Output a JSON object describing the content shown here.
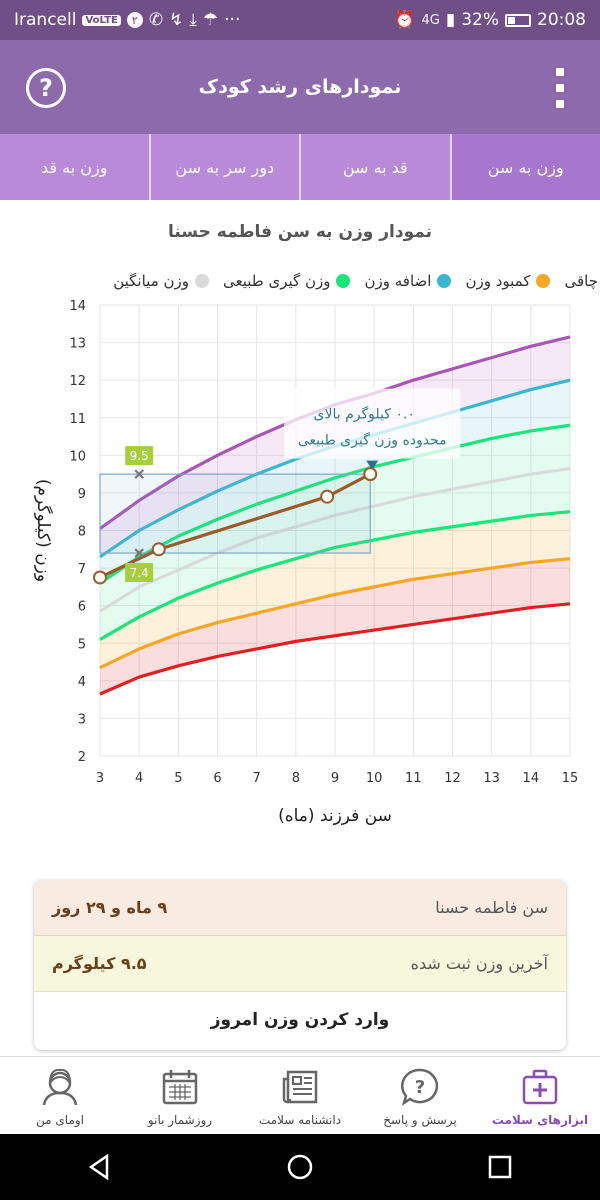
{
  "status_bar": {
    "carrier": "Irancell",
    "volte": "VoLTE",
    "badge": "۲",
    "battery": "32%",
    "time": "20:08",
    "network": "4G"
  },
  "app_bar": {
    "title": "نمودارهای رشد کودک",
    "help_icon": "question-circle-icon",
    "menu_icon": "overflow-menu-icon"
  },
  "tabs": [
    {
      "label": "وزن به سن",
      "active": true
    },
    {
      "label": "قد به سن",
      "active": false
    },
    {
      "label": "دور سر به سن",
      "active": false
    },
    {
      "label": "وزن به قد",
      "active": false
    }
  ],
  "chart_title": "نمودار وزن به سن فاطمه حسنا",
  "legend": [
    {
      "label": "چاقی",
      "color": "#a855b5"
    },
    {
      "label": "کمبود وزن",
      "color": "#f5a623"
    },
    {
      "label": "اضافه وزن",
      "color": "#3bb6d1"
    },
    {
      "label": "وزن گیری طبیعی",
      "color": "#19e67a"
    },
    {
      "label": "وزن میانگین",
      "color": "#d9d9d9"
    }
  ],
  "chart_data": {
    "type": "line",
    "title": "نمودار وزن به سن فاطمه حسنا",
    "xlabel": "سن فرزند (ماه)",
    "ylabel": "وزن (کیلوگرم)",
    "xlim": [
      3,
      15
    ],
    "ylim": [
      2,
      14
    ],
    "x": [
      3,
      4,
      5,
      6,
      7,
      8,
      9,
      10,
      11,
      12,
      13,
      14,
      15
    ],
    "series": [
      {
        "color": "#a855b5",
        "values": [
          8.05,
          8.8,
          9.45,
          10.0,
          10.5,
          10.95,
          11.35,
          11.65,
          12.0,
          12.3,
          12.6,
          12.9,
          13.15
        ]
      },
      {
        "color": "#3bb6d1",
        "values": [
          7.3,
          8.0,
          8.55,
          9.05,
          9.5,
          9.9,
          10.25,
          10.55,
          10.85,
          11.15,
          11.45,
          11.75,
          12.0
        ]
      },
      {
        "color": "#19e67a",
        "values": [
          6.6,
          7.3,
          7.85,
          8.3,
          8.7,
          9.05,
          9.4,
          9.7,
          9.95,
          10.2,
          10.45,
          10.65,
          10.8
        ]
      },
      {
        "color": "#d9d9d9",
        "values": [
          5.85,
          6.5,
          6.95,
          7.4,
          7.8,
          8.1,
          8.4,
          8.65,
          8.9,
          9.1,
          9.3,
          9.5,
          9.65
        ]
      },
      {
        "color": "#19e67a",
        "values": [
          5.1,
          5.7,
          6.2,
          6.6,
          6.95,
          7.25,
          7.55,
          7.75,
          7.95,
          8.1,
          8.25,
          8.4,
          8.5
        ]
      },
      {
        "color": "#f5a623",
        "values": [
          4.35,
          4.85,
          5.25,
          5.55,
          5.8,
          6.05,
          6.3,
          6.5,
          6.7,
          6.85,
          7.0,
          7.15,
          7.25
        ]
      },
      {
        "color": "#e02020",
        "values": [
          3.65,
          4.1,
          4.4,
          4.65,
          4.85,
          5.05,
          5.2,
          5.35,
          5.5,
          5.65,
          5.8,
          5.95,
          6.05
        ]
      }
    ],
    "child_series": {
      "name": "فاطمه حسنا",
      "color": "#9b5a2a",
      "points": [
        [
          3,
          6.75
        ],
        [
          4.5,
          7.5
        ],
        [
          8.8,
          8.9
        ],
        [
          9.9,
          9.5
        ]
      ]
    },
    "markers": [
      {
        "x": 4,
        "y": 9.5,
        "label": "9.5"
      },
      {
        "x": 4,
        "y": 7.4,
        "label": "7.4"
      }
    ],
    "annotation": "۰.۰ کیلوگرم بالای محدوده وزن گیری طبیعی",
    "annotation_line1": "۰.۰ کیلوگرم بالای",
    "annotation_line2": "محدوده وزن گیری طبیعی",
    "annotation_anchor": {
      "x": 9.95,
      "y": 9.7
    },
    "range_box": {
      "x0": 3,
      "x1": 9.9,
      "y0": 7.4,
      "y1": 9.5
    },
    "grid": true,
    "legend_position": "top"
  },
  "info_card": {
    "age_label": "سن فاطمه حسنا",
    "age_value": "۹ ماه و ۲۹ روز",
    "weight_label": "آخرین وزن ثبت شده",
    "weight_value": "۹.۵ کیلوگرم",
    "action_label": "وارد کردن وزن امروز"
  },
  "bottom_nav": [
    {
      "label": "ابزارهای سلامت",
      "active": true,
      "icon": "medical-kit-icon"
    },
    {
      "label": "پرسش و پاسخ",
      "active": false,
      "icon": "question-bubble-icon"
    },
    {
      "label": "دانشنامه سلامت",
      "active": false,
      "icon": "newspaper-icon"
    },
    {
      "label": "روزشمار بانو",
      "active": false,
      "icon": "calendar-icon"
    },
    {
      "label": "اومای من",
      "active": false,
      "icon": "profile-avatar-icon"
    }
  ]
}
